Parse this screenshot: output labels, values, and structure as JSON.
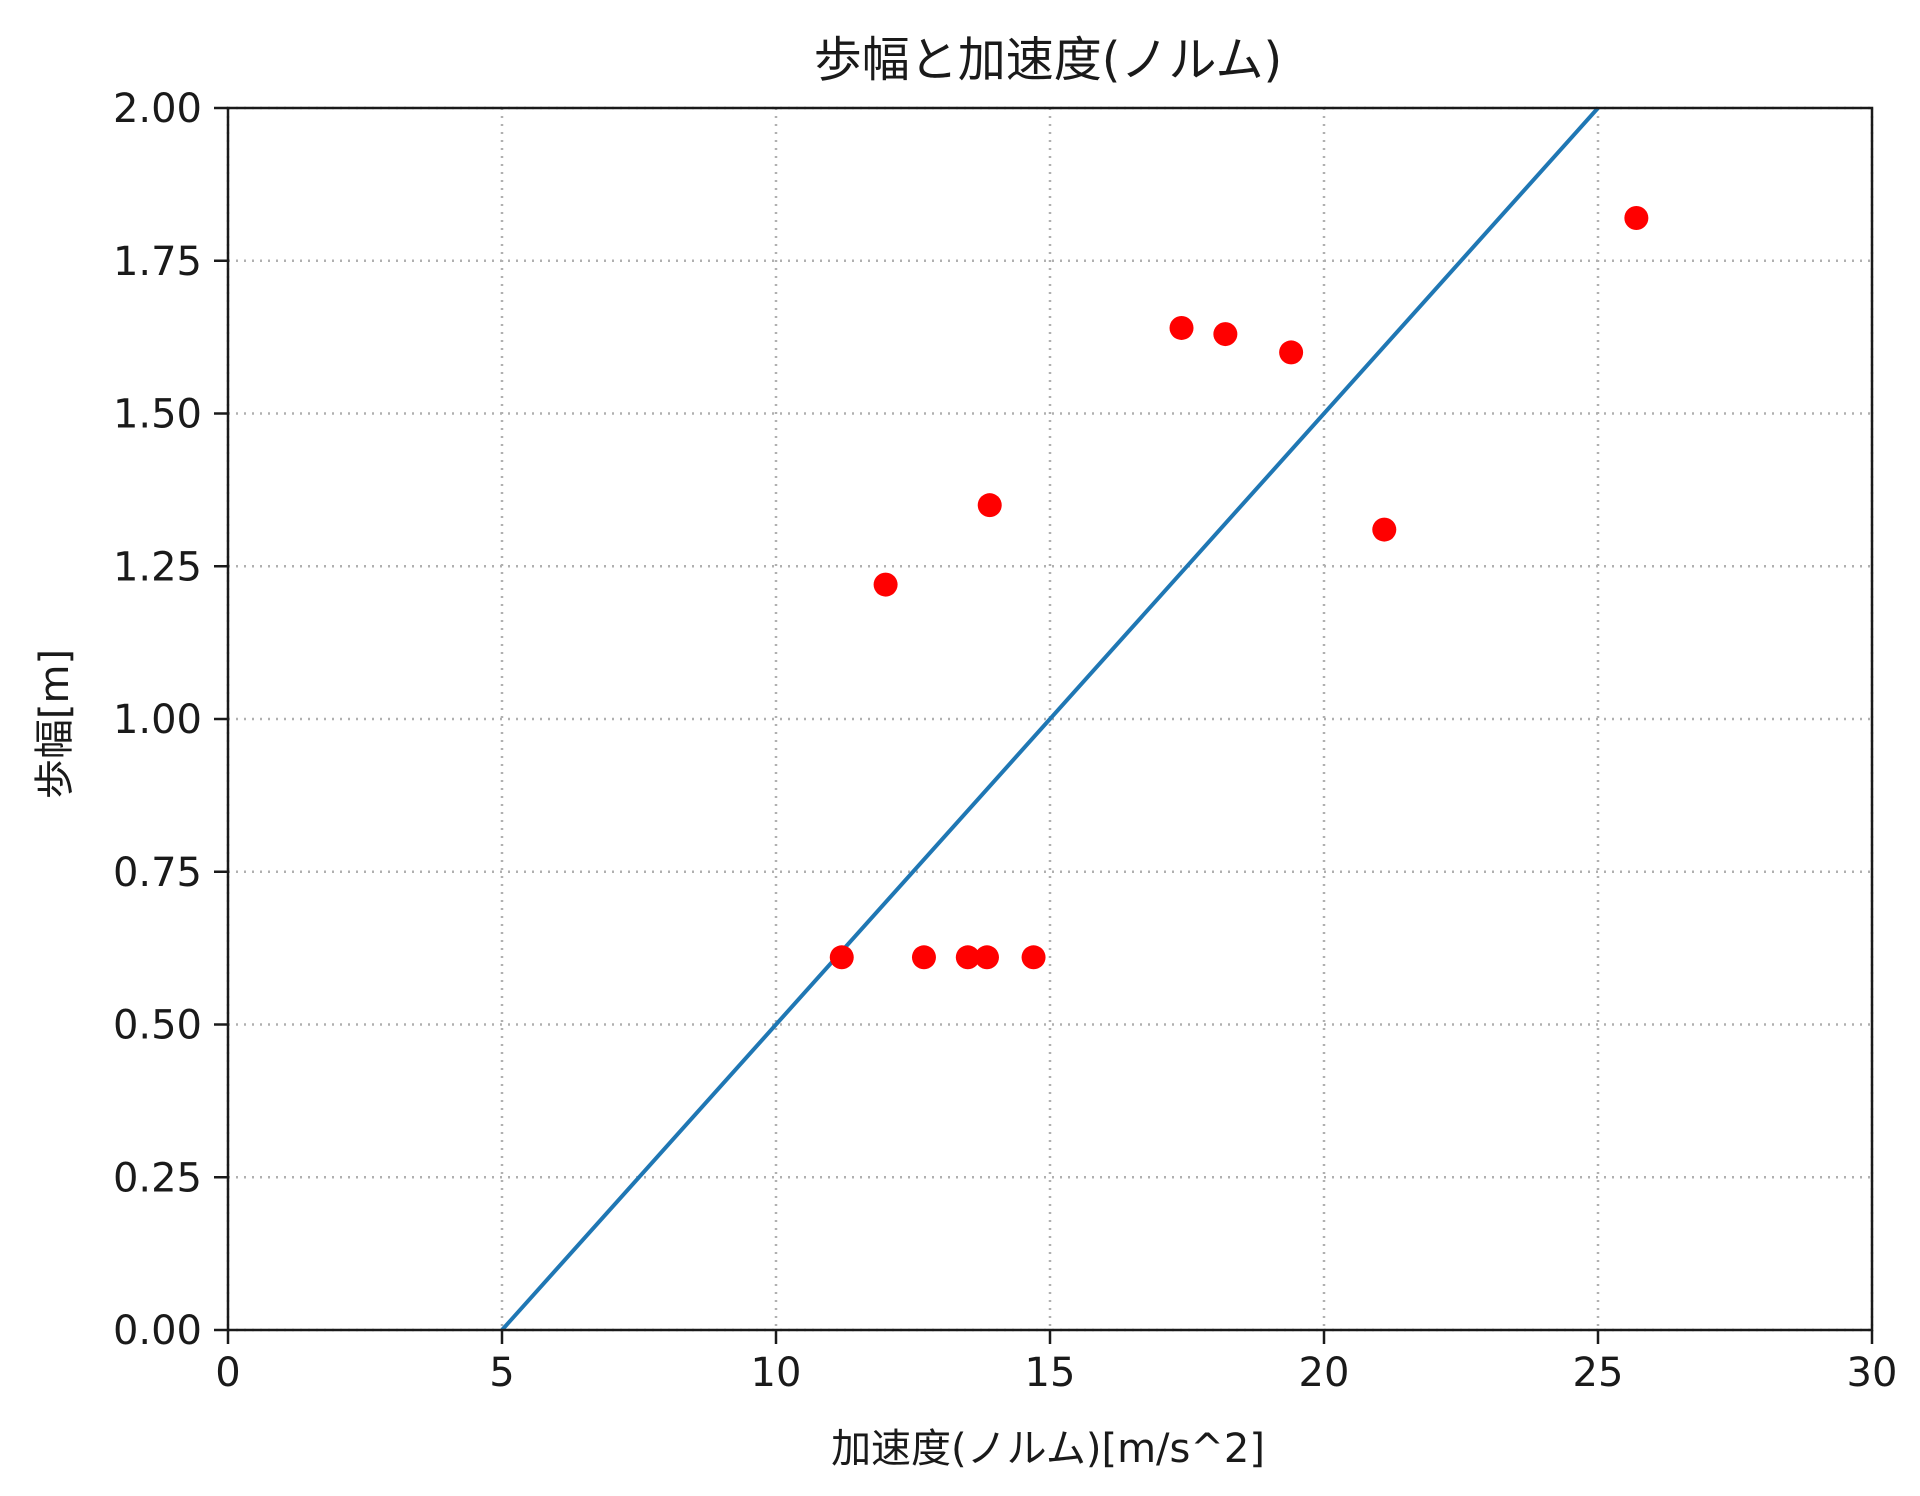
{
  "chart_data": {
    "type": "scatter",
    "title": "歩幅と加速度(ノルム)",
    "xlabel": "加速度(ノルム)[m/s^2]",
    "ylabel": "歩幅[m]",
    "xlim": [
      0,
      30
    ],
    "ylim": [
      0,
      2
    ],
    "xticks": [
      0,
      5,
      10,
      15,
      20,
      25,
      30
    ],
    "yticks": [
      0,
      0.25,
      0.5,
      0.75,
      1.0,
      1.25,
      1.5,
      1.75,
      2.0
    ],
    "xtick_labels": [
      "0",
      "5",
      "10",
      "15",
      "20",
      "25",
      "30"
    ],
    "ytick_labels": [
      "0.00",
      "0.25",
      "0.50",
      "0.75",
      "1.00",
      "1.25",
      "1.50",
      "1.75",
      "2.00"
    ],
    "grid": true,
    "grid_style": "dotted",
    "series": [
      {
        "type": "scatter",
        "color": "#ff0000",
        "points": [
          {
            "x": 11.2,
            "y": 0.61
          },
          {
            "x": 12.0,
            "y": 1.22
          },
          {
            "x": 12.7,
            "y": 0.61
          },
          {
            "x": 13.5,
            "y": 0.61
          },
          {
            "x": 13.85,
            "y": 0.61
          },
          {
            "x": 13.9,
            "y": 1.35
          },
          {
            "x": 14.7,
            "y": 0.61
          },
          {
            "x": 17.4,
            "y": 1.64
          },
          {
            "x": 18.2,
            "y": 1.63
          },
          {
            "x": 19.4,
            "y": 1.6
          },
          {
            "x": 21.1,
            "y": 1.31
          },
          {
            "x": 25.7,
            "y": 1.82
          }
        ]
      },
      {
        "type": "line",
        "color": "#1f77b4",
        "points": [
          {
            "x": 5,
            "y": 0
          },
          {
            "x": 25,
            "y": 2.0
          }
        ]
      }
    ]
  }
}
